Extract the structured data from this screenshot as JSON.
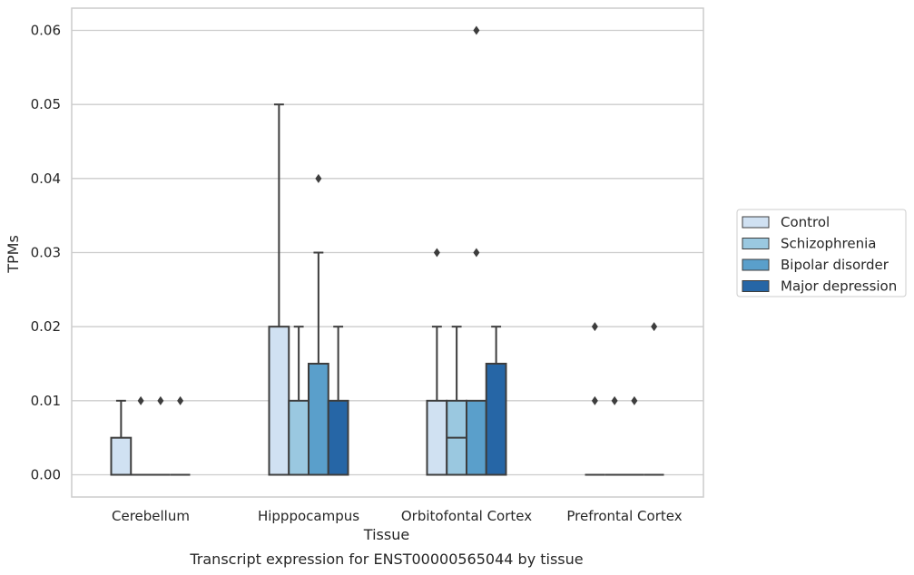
{
  "chart_data": {
    "type": "box",
    "ylabel": "TPMs",
    "xlabel": "Tissue",
    "caption": "Transcript expression for ENST00000565044 by tissue",
    "ylim": [
      -0.003,
      0.063
    ],
    "yticks": [
      0.0,
      0.01,
      0.02,
      0.03,
      0.04,
      0.05,
      0.06
    ],
    "ytick_labels": [
      "0.00",
      "0.01",
      "0.02",
      "0.03",
      "0.04",
      "0.05",
      "0.06"
    ],
    "grid": true,
    "legend_position": "right",
    "categories": [
      "Cerebellum",
      "Hipppocampus",
      "Orbitofontal Cortex",
      "Prefrontal Cortex"
    ],
    "series": [
      {
        "name": "Control",
        "color": "#d0e1f2",
        "boxes": [
          {
            "whislo": 0.0,
            "q1": 0.0,
            "med": 0.0,
            "q3": 0.005,
            "whishi": 0.01,
            "fliers": []
          },
          {
            "whislo": 0.0,
            "q1": 0.0,
            "med": 0.0,
            "q3": 0.02,
            "whishi": 0.05,
            "fliers": []
          },
          {
            "whislo": 0.0,
            "q1": 0.0,
            "med": 0.0,
            "q3": 0.01,
            "whishi": 0.02,
            "fliers": [
              0.03
            ]
          },
          {
            "whislo": 0.0,
            "q1": 0.0,
            "med": 0.0,
            "q3": 0.0,
            "whishi": 0.0,
            "fliers": [
              0.01,
              0.02
            ]
          }
        ]
      },
      {
        "name": "Schizophrenia",
        "color": "#9ac8e0",
        "boxes": [
          {
            "whislo": 0.0,
            "q1": 0.0,
            "med": 0.0,
            "q3": 0.0,
            "whishi": 0.0,
            "fliers": [
              0.01
            ]
          },
          {
            "whislo": 0.0,
            "q1": 0.0,
            "med": 0.0,
            "q3": 0.01,
            "whishi": 0.02,
            "fliers": []
          },
          {
            "whislo": 0.0,
            "q1": 0.0,
            "med": 0.005,
            "q3": 0.01,
            "whishi": 0.02,
            "fliers": []
          },
          {
            "whislo": 0.0,
            "q1": 0.0,
            "med": 0.0,
            "q3": 0.0,
            "whishi": 0.0,
            "fliers": [
              0.01
            ]
          }
        ]
      },
      {
        "name": "Bipolar disorder",
        "color": "#5a9fcb",
        "boxes": [
          {
            "whislo": 0.0,
            "q1": 0.0,
            "med": 0.0,
            "q3": 0.0,
            "whishi": 0.0,
            "fliers": [
              0.01
            ]
          },
          {
            "whislo": 0.0,
            "q1": 0.0,
            "med": 0.0,
            "q3": 0.015,
            "whishi": 0.03,
            "fliers": [
              0.04
            ]
          },
          {
            "whislo": 0.0,
            "q1": 0.0,
            "med": 0.0,
            "q3": 0.01,
            "whishi": 0.01,
            "fliers": [
              0.03,
              0.06
            ]
          },
          {
            "whislo": 0.0,
            "q1": 0.0,
            "med": 0.0,
            "q3": 0.0,
            "whishi": 0.0,
            "fliers": [
              0.01
            ]
          }
        ]
      },
      {
        "name": "Major depression",
        "color": "#2666a6",
        "boxes": [
          {
            "whislo": 0.0,
            "q1": 0.0,
            "med": 0.0,
            "q3": 0.0,
            "whishi": 0.0,
            "fliers": [
              0.01
            ]
          },
          {
            "whislo": 0.0,
            "q1": 0.0,
            "med": 0.0,
            "q3": 0.01,
            "whishi": 0.02,
            "fliers": []
          },
          {
            "whislo": 0.0,
            "q1": 0.0,
            "med": 0.0,
            "q3": 0.015,
            "whishi": 0.02,
            "fliers": []
          },
          {
            "whislo": 0.0,
            "q1": 0.0,
            "med": 0.0,
            "q3": 0.0,
            "whishi": 0.0,
            "fliers": [
              0.02
            ]
          }
        ]
      }
    ]
  }
}
